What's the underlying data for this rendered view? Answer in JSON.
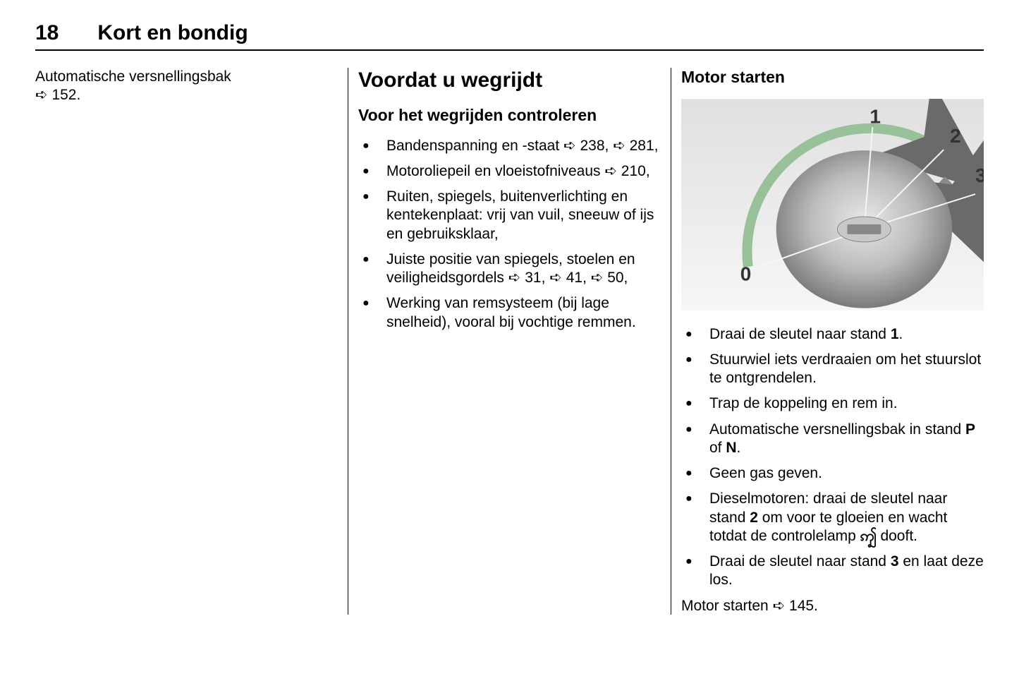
{
  "header": {
    "page_number": "18",
    "section": "Kort en bondig"
  },
  "col1": {
    "text_line1": "Automatische versnellingsbak",
    "text_line2": "3 152."
  },
  "col2": {
    "h1": "Voordat u wegrijdt",
    "h2": "Voor het wegrijden controleren",
    "bullets": [
      "Bandenspanning en -staat 3 238, 3 281,",
      "Motoroliepeil en vloeistofniveaus 3 210,",
      "Ruiten, spiegels, buitenverlich­ting en kentekenplaat: vrij van vuil, sneeuw of ijs en gebruiks­klaar,",
      "Juiste positie van spiegels, stoe­len en veiligheidsgordels 3 31, 3 41, 3 50,",
      "Werking van remsysteem (bij lage snelheid), vooral bij vochtige remmen."
    ]
  },
  "col3": {
    "h2": "Motor starten",
    "diagram": {
      "positions": [
        "0",
        "1",
        "2",
        "3"
      ],
      "label_fontsize": 26,
      "arc_color": "#99c199",
      "arrow_color": "#6a6a6a",
      "dial_outer": "#7a7a7a",
      "dial_mid": "#b0b0b0",
      "dial_inner": "#d8d8d8",
      "line_color": "#ffffff",
      "background": "#e9e9e9"
    },
    "bullets": [
      "Draai de sleutel naar stand <b>1</b>.",
      "Stuurwiel iets verdraaien om het stuurslot te ontgrendelen.",
      "Trap de koppeling en rem in.",
      "Automatische versnellingsbak in stand <b>P</b> of <b>N</b>.",
      "Geen gas geven.",
      "Dieselmotoren: draai de sleutel naar stand <b>2</b> om voor te gloeien en wacht totdat de controle­lamp ! dooft.",
      "Draai de sleutel naar stand <b>3</b> en laat deze los."
    ],
    "footer": "Motor starten 3 145."
  },
  "glyphs": {
    "ref_arrow": "➪",
    "preheat": "ꩵ"
  },
  "colors": {
    "text": "#000000",
    "rule": "#000000",
    "background": "#ffffff"
  },
  "typography": {
    "body_fontsize": 21,
    "h1_fontsize": 30,
    "h2_fontsize": 23,
    "header_fontsize": 30
  }
}
